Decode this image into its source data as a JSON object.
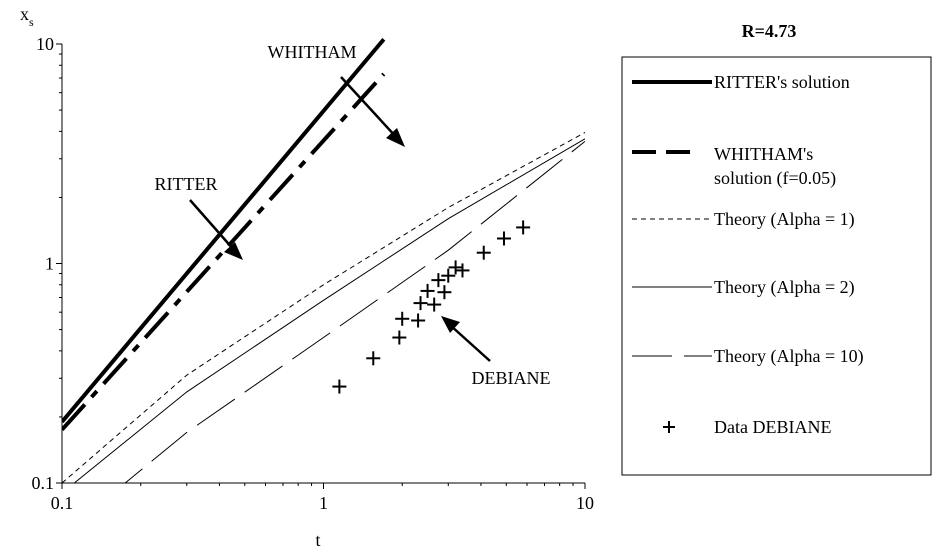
{
  "chart_data": {
    "type": "line",
    "title": "R=4.73",
    "xlabel": "t",
    "ylabel_main": "x",
    "ylabel_sub": "s",
    "xscale": "log",
    "yscale": "log",
    "xlim": [
      0.1,
      10
    ],
    "ylim": [
      0.1,
      10
    ],
    "xticks": [
      {
        "value": 0.1,
        "label": "0.1"
      },
      {
        "value": 1,
        "label": "1"
      },
      {
        "value": 10,
        "label": "10"
      }
    ],
    "yticks": [
      {
        "value": 0.1,
        "label": "0.1"
      },
      {
        "value": 1,
        "label": "1"
      },
      {
        "value": 10,
        "label": "10"
      }
    ],
    "grid": false,
    "legend_position": "right",
    "series": [
      {
        "name": "RITTER's solution",
        "style": "thick-solid",
        "x": [
          0.1,
          1.7
        ],
        "y": [
          0.19,
          10.5
        ]
      },
      {
        "name": "WHITHAM's solution (f=0.05)",
        "style": "thick-dash-dot",
        "x": [
          0.1,
          1.7
        ],
        "y": [
          0.175,
          7.3
        ]
      },
      {
        "name": "Theory (Alpha = 1)",
        "style": "thin-dashed",
        "x": [
          0.1,
          0.3,
          1,
          3,
          10
        ],
        "y": [
          0.1,
          0.31,
          0.8,
          1.8,
          3.95
        ]
      },
      {
        "name": "Theory (Alpha = 2)",
        "style": "thin-solid",
        "x": [
          0.1,
          0.3,
          1,
          3,
          10
        ],
        "y": [
          0.09,
          0.26,
          0.68,
          1.6,
          3.7
        ]
      },
      {
        "name": "Theory (Alpha = 10)",
        "style": "thin-long-dash",
        "x": [
          0.1,
          0.3,
          1,
          3,
          10
        ],
        "y": [
          0.058,
          0.17,
          0.46,
          1.15,
          3.6
        ]
      },
      {
        "name": "Data DEBIANE",
        "style": "plus-marker",
        "x": [
          1.15,
          1.55,
          1.95,
          2.0,
          2.3,
          2.35,
          2.5,
          2.65,
          2.75,
          2.9,
          3.0,
          3.2,
          3.4,
          4.1,
          4.9,
          5.8
        ],
        "y": [
          0.275,
          0.37,
          0.46,
          0.56,
          0.55,
          0.66,
          0.75,
          0.65,
          0.84,
          0.74,
          0.88,
          0.96,
          0.93,
          1.12,
          1.3,
          1.46
        ]
      }
    ],
    "annotations": [
      {
        "text": "WHITHAM",
        "target": {
          "x": 1.45,
          "y": 3.7
        }
      },
      {
        "text": "RITTER",
        "target": {
          "x": 0.48,
          "y": 0.97
        }
      },
      {
        "text": "DEBIANE",
        "target": {
          "x": 2.75,
          "y": 0.68
        }
      }
    ]
  }
}
